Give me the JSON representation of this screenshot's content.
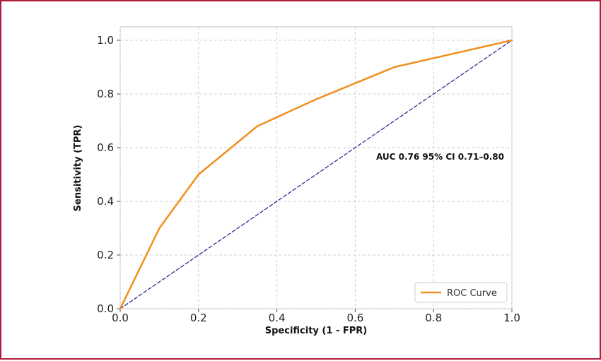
{
  "chart_data": {
    "type": "line",
    "title": "",
    "xlabel": "Specificity (1 - FPR)",
    "ylabel": "Sensitivity (TPR)",
    "xlim": [
      0.0,
      1.0
    ],
    "ylim": [
      0.0,
      1.0
    ],
    "xticks": [
      "0.0",
      "0.2",
      "0.4",
      "0.6",
      "0.8",
      "1.0"
    ],
    "yticks": [
      "0.0",
      "0.2",
      "0.4",
      "0.6",
      "0.8",
      "1.0"
    ],
    "grid": true,
    "legend_position": "bottom-right",
    "annotation": "AUC 0.76 95% CI 0.71–0.80",
    "series": [
      {
        "name": "ROC Curve",
        "color": "#f28e1c",
        "x": [
          0.0,
          0.1,
          0.2,
          0.35,
          0.5,
          0.7,
          1.0
        ],
        "y": [
          0.0,
          0.3,
          0.5,
          0.68,
          0.78,
          0.9,
          1.0
        ]
      },
      {
        "name": "",
        "style": "dashed",
        "color": "#1a1a8c",
        "x": [
          0.0,
          1.0
        ],
        "y": [
          0.0,
          1.0
        ]
      }
    ]
  }
}
